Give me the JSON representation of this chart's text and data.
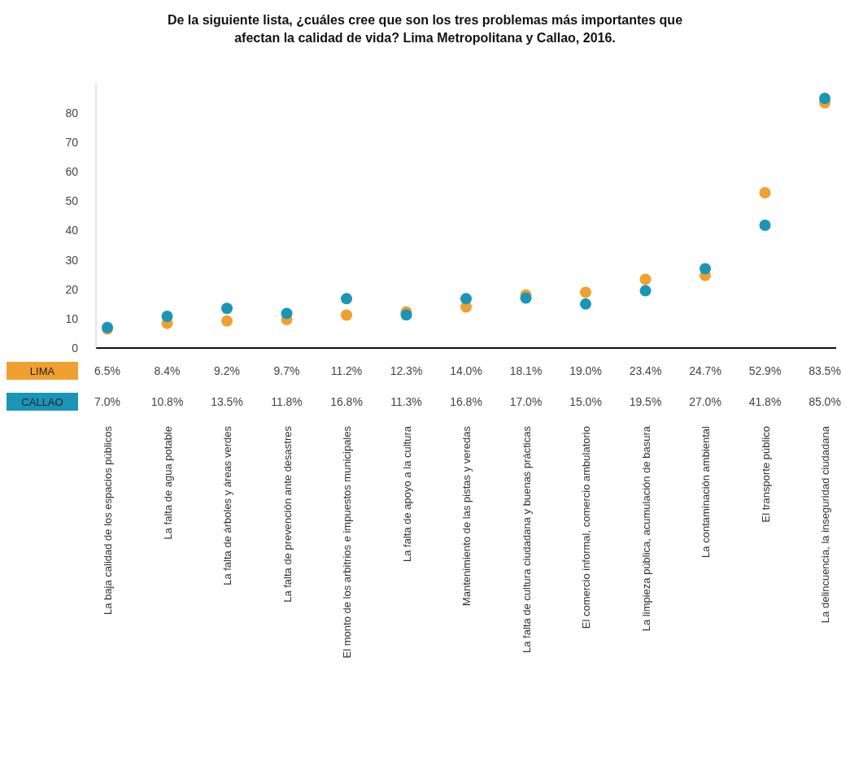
{
  "chart_data": {
    "type": "scatter",
    "title": "De la siguiente lista, ¿cuáles cree que son los tres problemas más importantes que afectan la calidad de vida? Lima Metropolitana y Callao, 2016.",
    "categories": [
      "La baja calidad de los espacios públicos",
      "La falta de agua potable",
      "La falta de árboles y áreas verdes",
      "La falta de prevención ante desastres",
      "El monto de los arbitrios e impuestos municipales",
      "La falta de apoyo a la cultura",
      "Mantenimiento de las pistas y veredas",
      "La falta de cultura ciudadana y buenas prácticas",
      "El comercio informal, comercio ambulatorio",
      "La limpieza pública, acumulación de basura",
      "La contaminación ambiental",
      "El transporte público",
      "La delincuencia, la inseguridad ciudadana"
    ],
    "series": [
      {
        "name": "LIMA",
        "color": "#f0a030",
        "values": [
          6.5,
          8.4,
          9.2,
          9.7,
          11.2,
          12.3,
          14.0,
          18.1,
          19.0,
          23.4,
          24.7,
          52.9,
          83.5
        ],
        "value_labels": [
          "6.5%",
          "8.4%",
          "9.2%",
          "9.7%",
          "11.2%",
          "12.3%",
          "14.0%",
          "18.1%",
          "19.0%",
          "23.4%",
          "24.7%",
          "52.9%",
          "83.5%"
        ]
      },
      {
        "name": "CALLAO",
        "color": "#1a95b8",
        "values": [
          7.0,
          10.8,
          13.5,
          11.8,
          16.8,
          11.3,
          16.8,
          17.0,
          15.0,
          19.5,
          27.0,
          41.8,
          85.0
        ],
        "value_labels": [
          "7.0%",
          "10.8%",
          "13.5%",
          "11.8%",
          "16.8%",
          "11.3%",
          "16.8%",
          "17.0%",
          "15.0%",
          "19.5%",
          "27.0%",
          "41.8%",
          "85.0%"
        ]
      }
    ],
    "ylim": [
      0,
      90
    ],
    "yticks": [
      0,
      10,
      20,
      30,
      40,
      50,
      60,
      70,
      80
    ],
    "marker": "circle",
    "legend": "left",
    "grid": false
  }
}
